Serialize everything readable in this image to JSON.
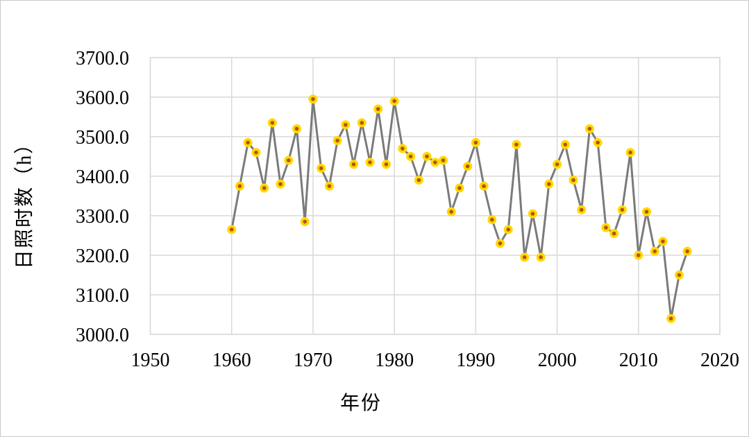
{
  "chart_data": {
    "type": "line",
    "title": "",
    "xlabel": "年份",
    "ylabel": "日照时数（h）",
    "x": [
      1960,
      1961,
      1962,
      1963,
      1964,
      1965,
      1966,
      1967,
      1968,
      1969,
      1970,
      1971,
      1972,
      1973,
      1974,
      1975,
      1976,
      1977,
      1978,
      1979,
      1980,
      1981,
      1982,
      1983,
      1984,
      1985,
      1986,
      1987,
      1988,
      1989,
      1990,
      1991,
      1992,
      1993,
      1994,
      1995,
      1996,
      1997,
      1998,
      1999,
      2000,
      2001,
      2002,
      2003,
      2004,
      2005,
      2006,
      2007,
      2008,
      2009,
      2010,
      2011,
      2012,
      2013,
      2014,
      2015,
      2016
    ],
    "values": [
      3265,
      3375,
      3485,
      3460,
      3370,
      3535,
      3380,
      3440,
      3520,
      3285,
      3595,
      3420,
      3375,
      3490,
      3530,
      3430,
      3535,
      3435,
      3570,
      3430,
      3590,
      3470,
      3450,
      3390,
      3450,
      3435,
      3440,
      3310,
      3370,
      3425,
      3485,
      3375,
      3290,
      3230,
      3265,
      3480,
      3195,
      3305,
      3195,
      3380,
      3430,
      3480,
      3390,
      3315,
      3520,
      3485,
      3270,
      3255,
      3315,
      3460,
      3200,
      3310,
      3210,
      3235,
      3040,
      3150,
      3210
    ],
    "xlim": [
      1950,
      2020
    ],
    "ylim": [
      3000,
      3700
    ],
    "x_ticks": [
      1950,
      1960,
      1970,
      1980,
      1990,
      2000,
      2010,
      2020
    ],
    "x_tick_labels": [
      "1950",
      "1960",
      "1970",
      "1980",
      "1990",
      "2000",
      "2010",
      "2020"
    ],
    "y_ticks": [
      3000,
      3100,
      3200,
      3300,
      3400,
      3500,
      3600,
      3700
    ],
    "y_tick_labels": [
      "3000.0",
      "3100.0",
      "3200.0",
      "3300.0",
      "3400.0",
      "3500.0",
      "3600.0",
      "3700.0"
    ],
    "grid": true,
    "legend": "none",
    "line_color": "#7a7a7a",
    "marker_outer_color": "#ffd800",
    "marker_inner_color": "#b45309",
    "grid_color": "#d9d9d9",
    "text_color": "#000000"
  }
}
